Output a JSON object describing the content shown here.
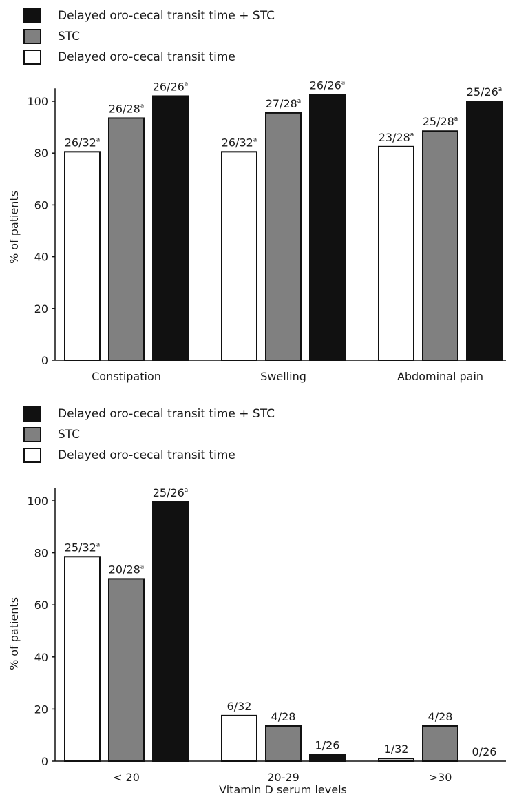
{
  "colors": {
    "black": "#111111",
    "gray": "#808080",
    "white": "#ffffff"
  },
  "chart_data": [
    {
      "type": "bar",
      "title": "",
      "xlabel": "",
      "ylabel": "% of patients",
      "ylim": [
        0,
        100
      ],
      "yticks": [
        "0",
        "20",
        "40",
        "60",
        "80",
        "100"
      ],
      "legend_position": "top-left",
      "legend": [
        {
          "label": "Delayed oro-cecal transit time + STC",
          "color": "black"
        },
        {
          "label": "STC",
          "color": "gray"
        },
        {
          "label": "Delayed oro-cecal transit time",
          "color": "white"
        }
      ],
      "categories": [
        "Constipation",
        "Swelling",
        "Abdominal pain"
      ],
      "series": [
        {
          "name": "Delayed oro-cecal transit time",
          "color": "white",
          "values": [
            80.5,
            80.5,
            82.5
          ],
          "labels": [
            "26/32",
            "26/32",
            "23/28"
          ],
          "sup": [
            "a",
            "a",
            "a"
          ]
        },
        {
          "name": "STC",
          "color": "gray",
          "values": [
            93.5,
            95.5,
            88.5
          ],
          "labels": [
            "26/28",
            "27/28",
            "25/28"
          ],
          "sup": [
            "a",
            "a",
            "a"
          ]
        },
        {
          "name": "Delayed oro-cecal transit time + STC",
          "color": "black",
          "values": [
            102,
            102.5,
            100
          ],
          "labels": [
            "26/26",
            "26/26",
            "25/26"
          ],
          "sup": [
            "a",
            "a",
            "a"
          ]
        }
      ]
    },
    {
      "type": "bar",
      "title": "",
      "xlabel": "Vitamin D serum levels",
      "ylabel": "% of patients",
      "ylim": [
        0,
        100
      ],
      "yticks": [
        "0",
        "20",
        "40",
        "60",
        "80",
        "100"
      ],
      "legend_position": "top-left",
      "legend": [
        {
          "label": "Delayed oro-cecal transit time + STC",
          "color": "black"
        },
        {
          "label": "STC",
          "color": "gray"
        },
        {
          "label": "Delayed oro-cecal transit time",
          "color": "white"
        }
      ],
      "categories": [
        "< 20",
        "20-29",
        ">30"
      ],
      "series": [
        {
          "name": "Delayed oro-cecal transit time",
          "color": "white",
          "values": [
            78.5,
            17.5,
            1
          ],
          "labels": [
            "25/32",
            "6/32",
            "1/32"
          ],
          "sup": [
            "a",
            "",
            ""
          ]
        },
        {
          "name": "STC",
          "color": "gray",
          "values": [
            70,
            13.5,
            13.5
          ],
          "labels": [
            "20/28",
            "4/28",
            "4/28"
          ],
          "sup": [
            "a",
            "",
            ""
          ]
        },
        {
          "name": "Delayed oro-cecal transit time + STC",
          "color": "black",
          "values": [
            99.5,
            2.5,
            0
          ],
          "labels": [
            "25/26",
            "1/26",
            "0/26"
          ],
          "sup": [
            "a",
            "",
            ""
          ]
        }
      ]
    }
  ]
}
